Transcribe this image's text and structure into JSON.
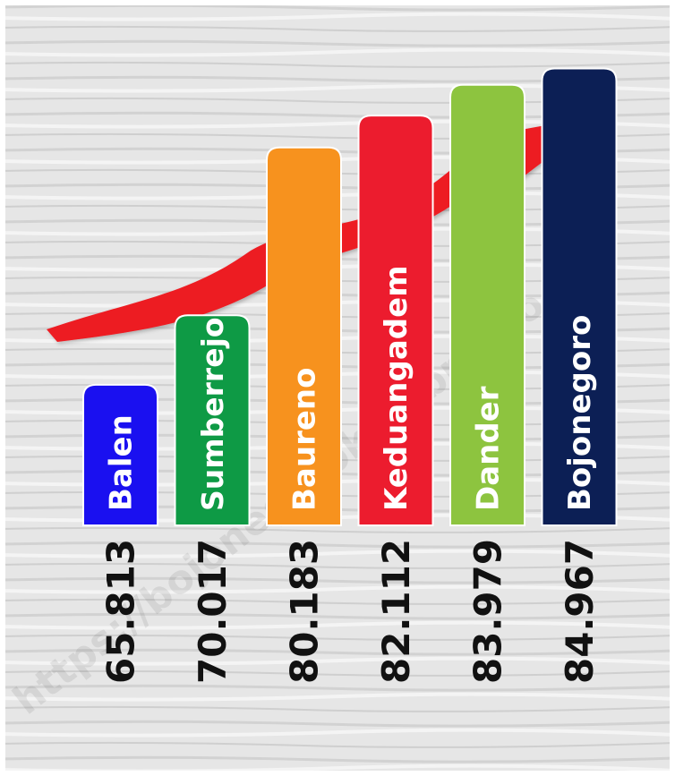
{
  "chart_data": {
    "type": "bar",
    "title": "",
    "xlabel": "",
    "ylabel": "",
    "categories": [
      "Balen",
      "Sumberrejo",
      "Baureno",
      "Keduangadem",
      "Dander",
      "Bojonegoro"
    ],
    "values": [
      65.813,
      70.017,
      80.183,
      82.112,
      83.979,
      84.967
    ],
    "value_labels": [
      "65.813",
      "70.017",
      "80.183",
      "82.112",
      "83.979",
      "84.967"
    ],
    "colors": [
      "#1a10f0",
      "#0e9a45",
      "#f7921e",
      "#ec1c2e",
      "#8dc43f",
      "#0c1f55"
    ],
    "arrow_color": "#ed1c24",
    "grid": false,
    "legend": "none",
    "label_orientation": "vertical"
  },
  "watermark": {
    "text": "https://bojonegorokab.bps.go.id",
    "color": "#000000"
  }
}
